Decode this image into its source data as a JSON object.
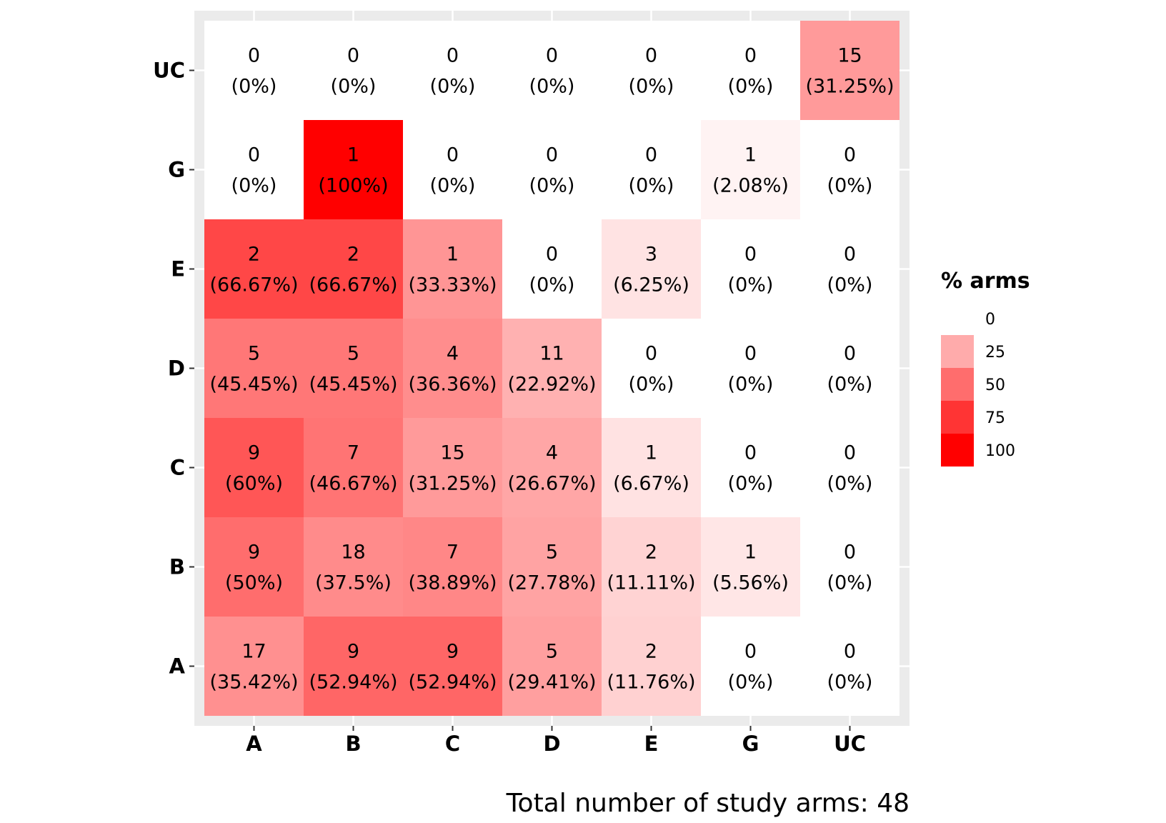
{
  "chart_data": {
    "type": "heatmap",
    "title": "",
    "xlabel": "",
    "ylabel": "",
    "x_categories": [
      "A",
      "B",
      "C",
      "D",
      "E",
      "G",
      "UC"
    ],
    "y_categories": [
      "A",
      "B",
      "C",
      "D",
      "E",
      "G",
      "UC"
    ],
    "cells": [
      {
        "x": "A",
        "y": "A",
        "count": "17",
        "pct": "(35.42%)",
        "value": 35.42
      },
      {
        "x": "B",
        "y": "A",
        "count": "9",
        "pct": "(52.94%)",
        "value": 52.94
      },
      {
        "x": "C",
        "y": "A",
        "count": "9",
        "pct": "(52.94%)",
        "value": 52.94
      },
      {
        "x": "D",
        "y": "A",
        "count": "5",
        "pct": "(29.41%)",
        "value": 29.41
      },
      {
        "x": "E",
        "y": "A",
        "count": "2",
        "pct": "(11.76%)",
        "value": 11.76
      },
      {
        "x": "G",
        "y": "A",
        "count": "0",
        "pct": "(0%)",
        "value": 0
      },
      {
        "x": "UC",
        "y": "A",
        "count": "0",
        "pct": "(0%)",
        "value": 0
      },
      {
        "x": "A",
        "y": "B",
        "count": "9",
        "pct": "(50%)",
        "value": 50
      },
      {
        "x": "B",
        "y": "B",
        "count": "18",
        "pct": "(37.5%)",
        "value": 37.5
      },
      {
        "x": "C",
        "y": "B",
        "count": "7",
        "pct": "(38.89%)",
        "value": 38.89
      },
      {
        "x": "D",
        "y": "B",
        "count": "5",
        "pct": "(27.78%)",
        "value": 27.78
      },
      {
        "x": "E",
        "y": "B",
        "count": "2",
        "pct": "(11.11%)",
        "value": 11.11
      },
      {
        "x": "G",
        "y": "B",
        "count": "1",
        "pct": "(5.56%)",
        "value": 5.56
      },
      {
        "x": "UC",
        "y": "B",
        "count": "0",
        "pct": "(0%)",
        "value": 0
      },
      {
        "x": "A",
        "y": "C",
        "count": "9",
        "pct": "(60%)",
        "value": 60
      },
      {
        "x": "B",
        "y": "C",
        "count": "7",
        "pct": "(46.67%)",
        "value": 46.67
      },
      {
        "x": "C",
        "y": "C",
        "count": "15",
        "pct": "(31.25%)",
        "value": 31.25
      },
      {
        "x": "D",
        "y": "C",
        "count": "4",
        "pct": "(26.67%)",
        "value": 26.67
      },
      {
        "x": "E",
        "y": "C",
        "count": "1",
        "pct": "(6.67%)",
        "value": 6.67
      },
      {
        "x": "G",
        "y": "C",
        "count": "0",
        "pct": "(0%)",
        "value": 0
      },
      {
        "x": "UC",
        "y": "C",
        "count": "0",
        "pct": "(0%)",
        "value": 0
      },
      {
        "x": "A",
        "y": "D",
        "count": "5",
        "pct": "(45.45%)",
        "value": 45.45
      },
      {
        "x": "B",
        "y": "D",
        "count": "5",
        "pct": "(45.45%)",
        "value": 45.45
      },
      {
        "x": "C",
        "y": "D",
        "count": "4",
        "pct": "(36.36%)",
        "value": 36.36
      },
      {
        "x": "D",
        "y": "D",
        "count": "11",
        "pct": "(22.92%)",
        "value": 22.92
      },
      {
        "x": "E",
        "y": "D",
        "count": "0",
        "pct": "(0%)",
        "value": 0
      },
      {
        "x": "G",
        "y": "D",
        "count": "0",
        "pct": "(0%)",
        "value": 0
      },
      {
        "x": "UC",
        "y": "D",
        "count": "0",
        "pct": "(0%)",
        "value": 0
      },
      {
        "x": "A",
        "y": "E",
        "count": "2",
        "pct": "(66.67%)",
        "value": 66.67
      },
      {
        "x": "B",
        "y": "E",
        "count": "2",
        "pct": "(66.67%)",
        "value": 66.67
      },
      {
        "x": "C",
        "y": "E",
        "count": "1",
        "pct": "(33.33%)",
        "value": 33.33
      },
      {
        "x": "D",
        "y": "E",
        "count": "0",
        "pct": "(0%)",
        "value": 0
      },
      {
        "x": "E",
        "y": "E",
        "count": "3",
        "pct": "(6.25%)",
        "value": 6.25
      },
      {
        "x": "G",
        "y": "E",
        "count": "0",
        "pct": "(0%)",
        "value": 0
      },
      {
        "x": "UC",
        "y": "E",
        "count": "0",
        "pct": "(0%)",
        "value": 0
      },
      {
        "x": "A",
        "y": "G",
        "count": "0",
        "pct": "(0%)",
        "value": 0
      },
      {
        "x": "B",
        "y": "G",
        "count": "1",
        "pct": "(100%)",
        "value": 100
      },
      {
        "x": "C",
        "y": "G",
        "count": "0",
        "pct": "(0%)",
        "value": 0
      },
      {
        "x": "D",
        "y": "G",
        "count": "0",
        "pct": "(0%)",
        "value": 0
      },
      {
        "x": "E",
        "y": "G",
        "count": "0",
        "pct": "(0%)",
        "value": 0
      },
      {
        "x": "G",
        "y": "G",
        "count": "1",
        "pct": "(2.08%)",
        "value": 2.08
      },
      {
        "x": "UC",
        "y": "G",
        "count": "0",
        "pct": "(0%)",
        "value": 0
      },
      {
        "x": "A",
        "y": "UC",
        "count": "0",
        "pct": "(0%)",
        "value": 0
      },
      {
        "x": "B",
        "y": "UC",
        "count": "0",
        "pct": "(0%)",
        "value": 0
      },
      {
        "x": "C",
        "y": "UC",
        "count": "0",
        "pct": "(0%)",
        "value": 0
      },
      {
        "x": "D",
        "y": "UC",
        "count": "0",
        "pct": "(0%)",
        "value": 0
      },
      {
        "x": "E",
        "y": "UC",
        "count": "0",
        "pct": "(0%)",
        "value": 0
      },
      {
        "x": "G",
        "y": "UC",
        "count": "0",
        "pct": "(0%)",
        "value": 0
      },
      {
        "x": "UC",
        "y": "UC",
        "count": "15",
        "pct": "(31.25%)",
        "value": 31.25
      }
    ],
    "color_scale": {
      "low": "#ffffff",
      "high": "#ff0000",
      "range": [
        0,
        100
      ]
    },
    "legend": {
      "title": "% arms",
      "breaks": [
        0,
        25,
        50,
        75,
        100
      ],
      "labels": [
        "0",
        "25",
        "50",
        "75",
        "100"
      ],
      "position": "right"
    },
    "caption": "Total number of study arms: 48",
    "grid": true,
    "panel_background": "#ebebeb",
    "gridline_color": "#ffffff"
  }
}
